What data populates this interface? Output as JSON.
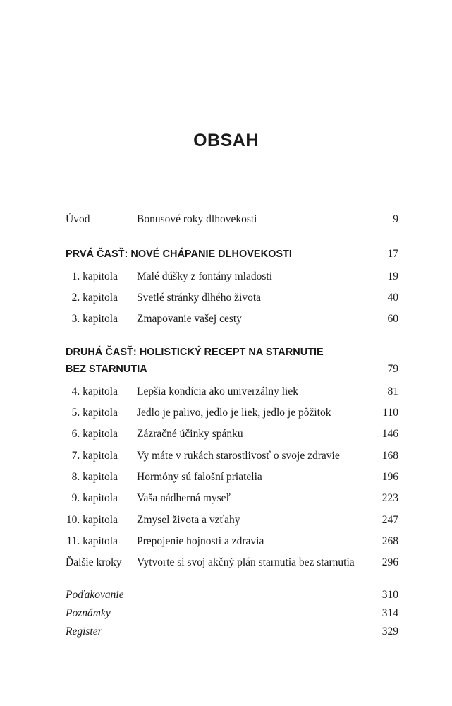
{
  "title": "OBSAH",
  "intro": {
    "label": "Úvod",
    "name": "Bonusové roky dlhovekosti",
    "page": "9"
  },
  "part1": {
    "title": "PRVÁ ČASŤ: NOVÉ CHÁPANIE DLHOVEKOSTI",
    "page": "17",
    "chapters": [
      {
        "label": "1. kapitola",
        "name": "Malé dúšky z fontány mladosti",
        "page": "19"
      },
      {
        "label": "2. kapitola",
        "name": "Svetlé stránky dlhého života",
        "page": "40"
      },
      {
        "label": "3. kapitola",
        "name": "Zmapovanie vašej cesty",
        "page": "60"
      }
    ]
  },
  "part2": {
    "title_line1": "DRUHÁ ČASŤ: HOLISTICKÝ RECEPT NA STARNUTIE",
    "title_line2": "BEZ STARNUTIA",
    "page": "79",
    "chapters": [
      {
        "label": "4. kapitola",
        "name": "Lepšia kondícia ako univerzálny liek",
        "page": "81"
      },
      {
        "label": "5. kapitola",
        "name": "Jedlo je palivo, jedlo je liek, jedlo je pôžitok",
        "page": "110"
      },
      {
        "label": "6. kapitola",
        "name": "Zázračné účinky spánku",
        "page": "146"
      },
      {
        "label": "7. kapitola",
        "name": "Vy máte v rukách starostlivosť o svoje zdravie",
        "page": "168"
      },
      {
        "label": "8. kapitola",
        "name": "Hormóny sú falošní priatelia",
        "page": "196"
      },
      {
        "label": "9. kapitola",
        "name": "Vaša nádherná myseľ",
        "page": "223"
      },
      {
        "label": "10. kapitola",
        "name": "Zmysel života a vzťahy",
        "page": "247"
      },
      {
        "label": "11. kapitola",
        "name": "Prepojenie hojnosti a zdravia",
        "page": "268"
      }
    ]
  },
  "next_steps": {
    "label": "Ďalšie kroky",
    "name": "Vytvorte si svoj akčný plán starnutia bez starnutia",
    "page": "296"
  },
  "back_matter": [
    {
      "label": "Poďakovanie",
      "page": "310"
    },
    {
      "label": "Poznámky",
      "page": "314"
    },
    {
      "label": "Register",
      "page": "329"
    }
  ]
}
